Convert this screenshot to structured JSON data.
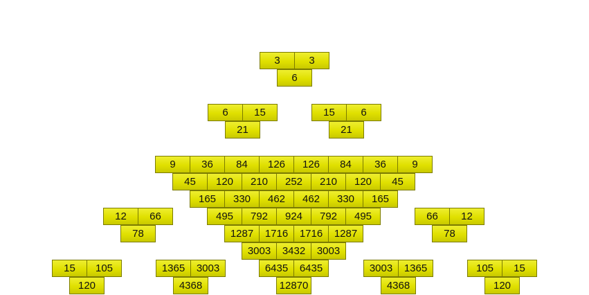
{
  "groups": [
    {
      "name": "top",
      "rows": [
        [
          "3",
          "3"
        ],
        [
          "6"
        ]
      ]
    },
    {
      "name": "left-small",
      "rows": [
        [
          "6",
          "15"
        ],
        [
          "21"
        ]
      ]
    },
    {
      "name": "right-small",
      "rows": [
        [
          "15",
          "6"
        ],
        [
          "21"
        ]
      ]
    },
    {
      "name": "center-triangle",
      "rows": [
        [
          "9",
          "36",
          "84",
          "126",
          "126",
          "84",
          "36",
          "9"
        ],
        [
          "45",
          "120",
          "210",
          "252",
          "210",
          "120",
          "45"
        ],
        [
          "165",
          "330",
          "462",
          "462",
          "330",
          "165"
        ],
        [
          "495",
          "792",
          "924",
          "792",
          "495"
        ],
        [
          "1287",
          "1716",
          "1716",
          "1287"
        ],
        [
          "3003",
          "3432",
          "3003"
        ],
        [
          "6435",
          "6435"
        ],
        [
          "12870"
        ]
      ]
    },
    {
      "name": "left-mid",
      "rows": [
        [
          "12",
          "66"
        ],
        [
          "78"
        ]
      ]
    },
    {
      "name": "right-mid",
      "rows": [
        [
          "66",
          "12"
        ],
        [
          "78"
        ]
      ]
    },
    {
      "name": "bottom-far-left",
      "rows": [
        [
          "15",
          "105"
        ],
        [
          "120"
        ]
      ]
    },
    {
      "name": "bottom-left",
      "rows": [
        [
          "1365",
          "3003"
        ],
        [
          "4368"
        ]
      ]
    },
    {
      "name": "bottom-right",
      "rows": [
        [
          "3003",
          "1365"
        ],
        [
          "4368"
        ]
      ]
    },
    {
      "name": "bottom-far-right",
      "rows": [
        [
          "105",
          "15"
        ],
        [
          "120"
        ]
      ]
    }
  ],
  "colors": {
    "cell_fill": "#e0e000",
    "cell_border": "#7b7b00",
    "text": "#111111"
  }
}
